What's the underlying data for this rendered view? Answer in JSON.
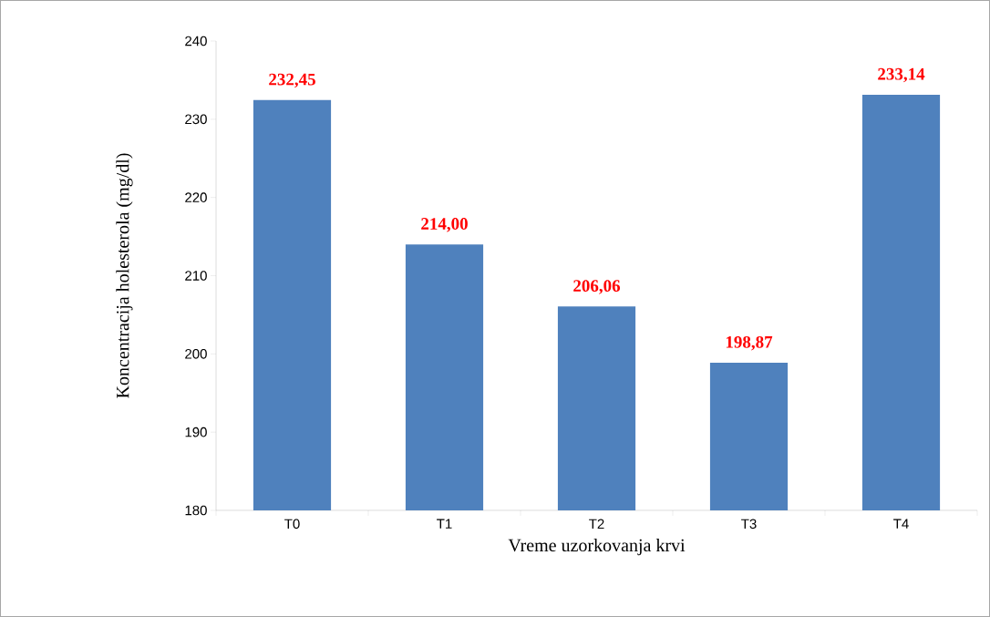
{
  "chart_data": {
    "type": "bar",
    "xlabel": "Vreme uzorkovanja krvi",
    "ylabel": "Koncentracija holesterola  (mg/dl)",
    "categories": [
      "T0",
      "T1",
      "T2",
      "T3",
      "T4"
    ],
    "values": [
      232.45,
      214.0,
      206.06,
      198.87,
      233.14
    ],
    "value_labels": [
      "232,45",
      "214,00",
      "206,06",
      "198,87",
      "233,14"
    ],
    "color": "#4f81bd",
    "ylim": [
      180,
      240
    ],
    "yticks": [
      180,
      190,
      200,
      210,
      220,
      230,
      240
    ]
  }
}
